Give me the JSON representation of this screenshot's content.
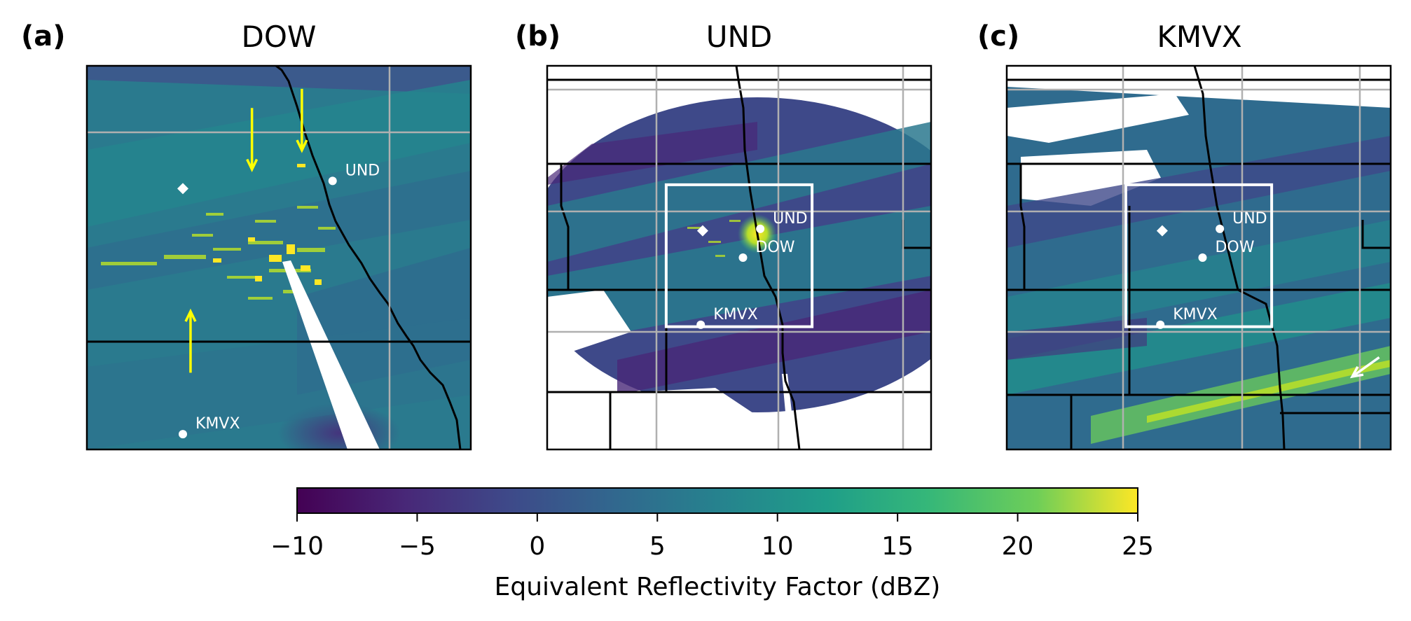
{
  "chart_data": {
    "type": "heatmap",
    "panels": [
      {
        "panel_label": "(a)",
        "title": "DOW",
        "sites": [
          {
            "name": "UND",
            "x": 0.64,
            "y": 0.3
          },
          {
            "name": "KMVX",
            "x": 0.25,
            "y": 0.96
          },
          {
            "name": "",
            "x": 0.25,
            "y": 0.32,
            "marker": "diamond"
          }
        ],
        "arrows": [
          {
            "x1": 0.43,
            "y1": 0.11,
            "x2": 0.43,
            "y2": 0.27,
            "color": "#ffff00"
          },
          {
            "x1": 0.56,
            "y1": 0.06,
            "x2": 0.56,
            "y2": 0.22,
            "color": "#ffff00"
          },
          {
            "x1": 0.27,
            "y1": 0.8,
            "x2": 0.27,
            "y2": 0.64,
            "color": "#ffff00"
          }
        ],
        "grid": true
      },
      {
        "panel_label": "(b)",
        "title": "UND",
        "sites": [
          {
            "name": "UND",
            "x": 0.555,
            "y": 0.425
          },
          {
            "name": "DOW",
            "x": 0.51,
            "y": 0.5
          },
          {
            "name": "KMVX",
            "x": 0.4,
            "y": 0.675
          },
          {
            "name": "",
            "x": 0.405,
            "y": 0.43,
            "marker": "diamond"
          }
        ],
        "inset_box": {
          "x0": 0.31,
          "y0": 0.31,
          "x1": 0.69,
          "y1": 0.68
        },
        "grid": true
      },
      {
        "panel_label": "(c)",
        "title": "KMVX",
        "sites": [
          {
            "name": "UND",
            "x": 0.555,
            "y": 0.425
          },
          {
            "name": "DOW",
            "x": 0.51,
            "y": 0.5
          },
          {
            "name": "KMVX",
            "x": 0.4,
            "y": 0.675
          },
          {
            "name": "",
            "x": 0.405,
            "y": 0.43,
            "marker": "diamond"
          }
        ],
        "inset_box": {
          "x0": 0.31,
          "y0": 0.31,
          "x1": 0.69,
          "y1": 0.68
        },
        "arrows": [
          {
            "x1": 0.97,
            "y1": 0.76,
            "x2": 0.9,
            "y2": 0.81,
            "color": "#ffffff"
          }
        ],
        "grid": true
      }
    ],
    "colorbar": {
      "label": "Equivalent Reflectivity Factor (dBZ)",
      "vmin": -10,
      "vmax": 25,
      "ticks": [
        -10,
        -5,
        0,
        5,
        10,
        15,
        20,
        25
      ],
      "tick_labels": [
        "−10",
        "−5",
        "0",
        "5",
        "10",
        "15",
        "20",
        "25"
      ],
      "colormap": "viridis"
    }
  }
}
